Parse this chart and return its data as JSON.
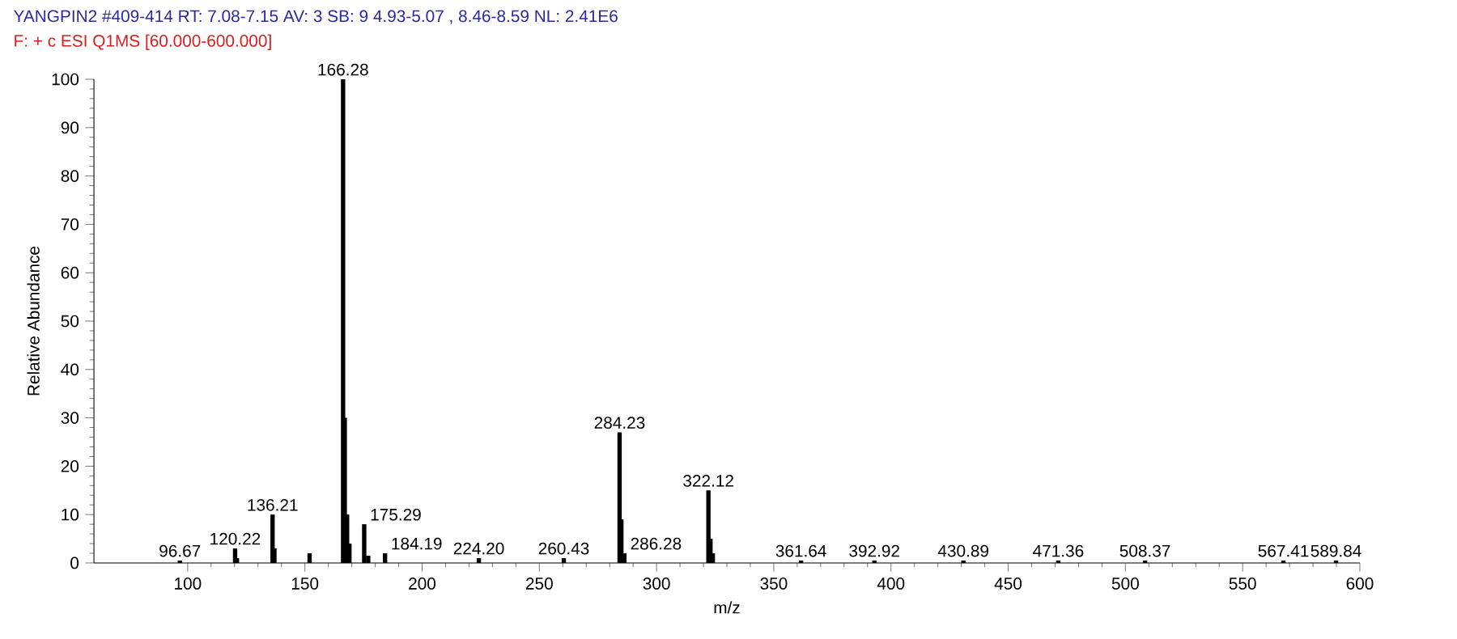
{
  "chart_data": {
    "type": "bar",
    "title": "YANGPIN2 #409-414  RT: 7.08-7.15  AV: 3  SB: 9 4.93-5.07 , 8.46-8.59  NL: 2.41E6",
    "subtitle": "F: + c ESI Q1MS [60.000-600.000]",
    "xlabel": "m/z",
    "ylabel": "Relative Abundance",
    "color": "#000000",
    "x": [
      96.67,
      120.22,
      121,
      136.21,
      137,
      152,
      166.28,
      167,
      168,
      169,
      175.29,
      177,
      184.19,
      224.2,
      260.43,
      284.23,
      285,
      286.28,
      322.12,
      323,
      324,
      361.64,
      392.92,
      430.89,
      471.36,
      508.37,
      567.41,
      589.84
    ],
    "values": [
      0.5,
      3,
      1,
      10,
      3,
      2,
      100,
      30,
      10,
      4,
      8,
      1.5,
      2,
      1,
      1,
      27,
      9,
      2,
      15,
      5,
      2,
      0.5,
      0.5,
      0.5,
      0.5,
      0.5,
      0.5,
      0.5
    ],
    "annotations": [
      {
        "text": "96.67",
        "x": 96.67,
        "y": 0.5
      },
      {
        "text": "120.22",
        "x": 120.22,
        "y": 3
      },
      {
        "text": "136.21",
        "x": 136.21,
        "y": 10
      },
      {
        "text": "166.28",
        "x": 166.28,
        "y": 100
      },
      {
        "text": "175.29",
        "x": 175.29,
        "y": 8
      },
      {
        "text": "184.19",
        "x": 184.19,
        "y": 2
      },
      {
        "text": "224.20",
        "x": 224.2,
        "y": 1
      },
      {
        "text": "260.43",
        "x": 260.43,
        "y": 1
      },
      {
        "text": "284.23",
        "x": 284.23,
        "y": 27
      },
      {
        "text": "286.28",
        "x": 286.28,
        "y": 2
      },
      {
        "text": "322.12",
        "x": 322.12,
        "y": 15
      },
      {
        "text": "361.64",
        "x": 361.64,
        "y": 0.5
      },
      {
        "text": "392.92",
        "x": 392.92,
        "y": 0.5
      },
      {
        "text": "430.89",
        "x": 430.89,
        "y": 0.5
      },
      {
        "text": "471.36",
        "x": 471.36,
        "y": 0.5
      },
      {
        "text": "508.37",
        "x": 508.37,
        "y": 0.5
      },
      {
        "text": "567.41",
        "x": 567.41,
        "y": 0.5
      },
      {
        "text": "589.84",
        "x": 589.84,
        "y": 0.5
      }
    ],
    "xlim": [
      60,
      600
    ],
    "xticks": [
      100,
      150,
      200,
      250,
      300,
      350,
      400,
      450,
      500,
      550,
      600
    ],
    "ylim": [
      0,
      100
    ],
    "yticks": [
      0,
      10,
      20,
      30,
      40,
      50,
      60,
      70,
      80,
      90,
      100
    ]
  }
}
